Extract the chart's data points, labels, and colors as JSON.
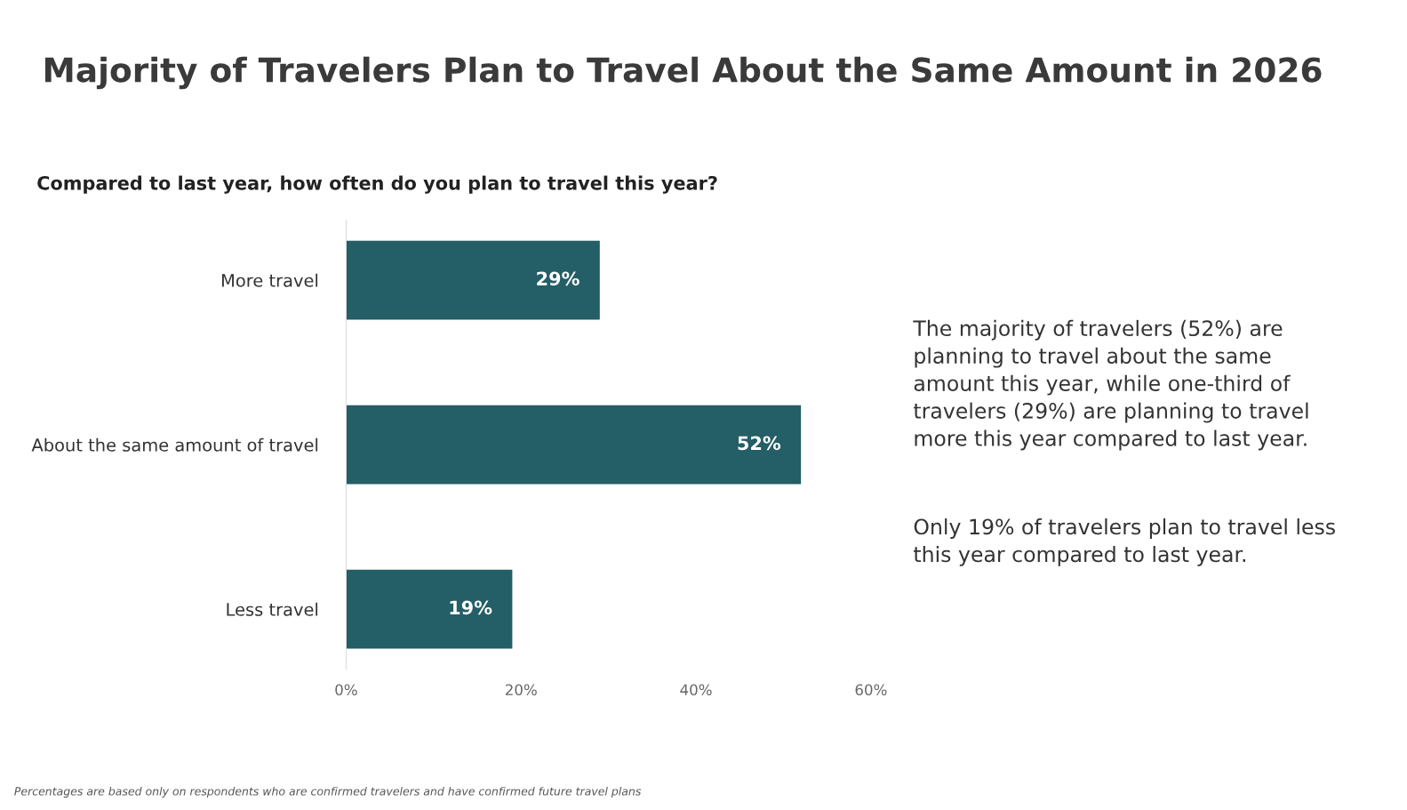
{
  "chart_data": {
    "type": "bar",
    "orientation": "horizontal",
    "title": "Majority of Travelers Plan to Travel About the Same Amount in 2026",
    "subtitle": "Compared to last year, how often do you plan to travel this year?",
    "categories": [
      "More travel",
      "About the same amount of travel",
      "Less travel"
    ],
    "values": [
      29,
      52,
      19
    ],
    "color": "#245e66",
    "value_labels": [
      "29%",
      "52%",
      "19%"
    ],
    "xlim": [
      0,
      60
    ],
    "xticks": [
      {
        "value": 0,
        "label": "0%"
      },
      {
        "value": 20,
        "label": "20%"
      },
      {
        "value": 40,
        "label": "40%"
      },
      {
        "value": 60,
        "label": "60%"
      }
    ],
    "grid": false,
    "legend": false,
    "annotations": [
      "The majority of travelers (52%) are\nplanning to travel about the same\namount this year, while one-third of\ntravelers (29%) are planning to travel\nmore this year compared to last year.",
      "Only 19% of travelers plan to travel less\nthis year compared to last year.",
      "Percentages are based only on respondents who are confirmed travelers and have confirmed future travel plans"
    ]
  }
}
